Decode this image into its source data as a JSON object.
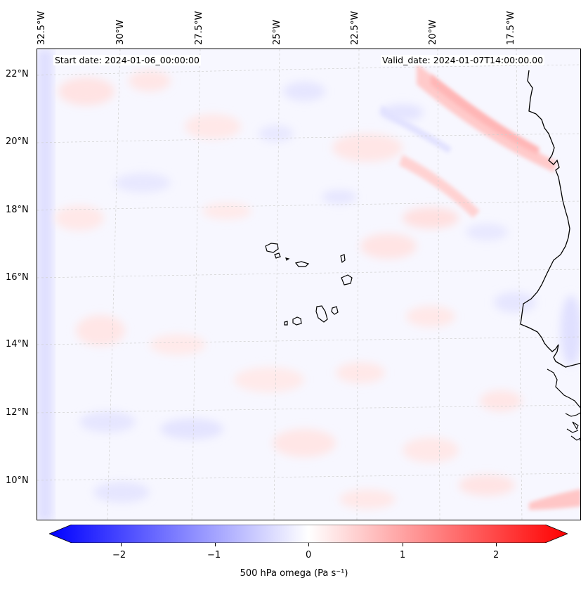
{
  "header": {
    "start_date": "Start date: 2024-01-06_00:00:00",
    "valid_date": "Valid_date: 2024-01-07T14:00:00.00"
  },
  "longitude_labels": [
    "32.5°W",
    "30°W",
    "27.5°W",
    "25°W",
    "22.5°W",
    "20°W",
    "17.5°W"
  ],
  "latitude_labels": [
    "22°N",
    "20°N",
    "18°N",
    "16°N",
    "14°N",
    "12°N",
    "10°N"
  ],
  "colorbar": {
    "ticks": [
      "−2",
      "−1",
      "0",
      "1",
      "2"
    ],
    "range": [
      -2.6,
      2.6
    ],
    "cmap": "bwr",
    "color_min": "#0000ff",
    "color_mid": "#ffffff",
    "color_max": "#ff0000",
    "label": "500 hPa omega (Pa s⁻¹)"
  },
  "map": {
    "projection": "Lambert conformal",
    "variable": "500 hPa omega",
    "coastline_color": "#000000",
    "gridlines": "dashed light gray"
  }
}
